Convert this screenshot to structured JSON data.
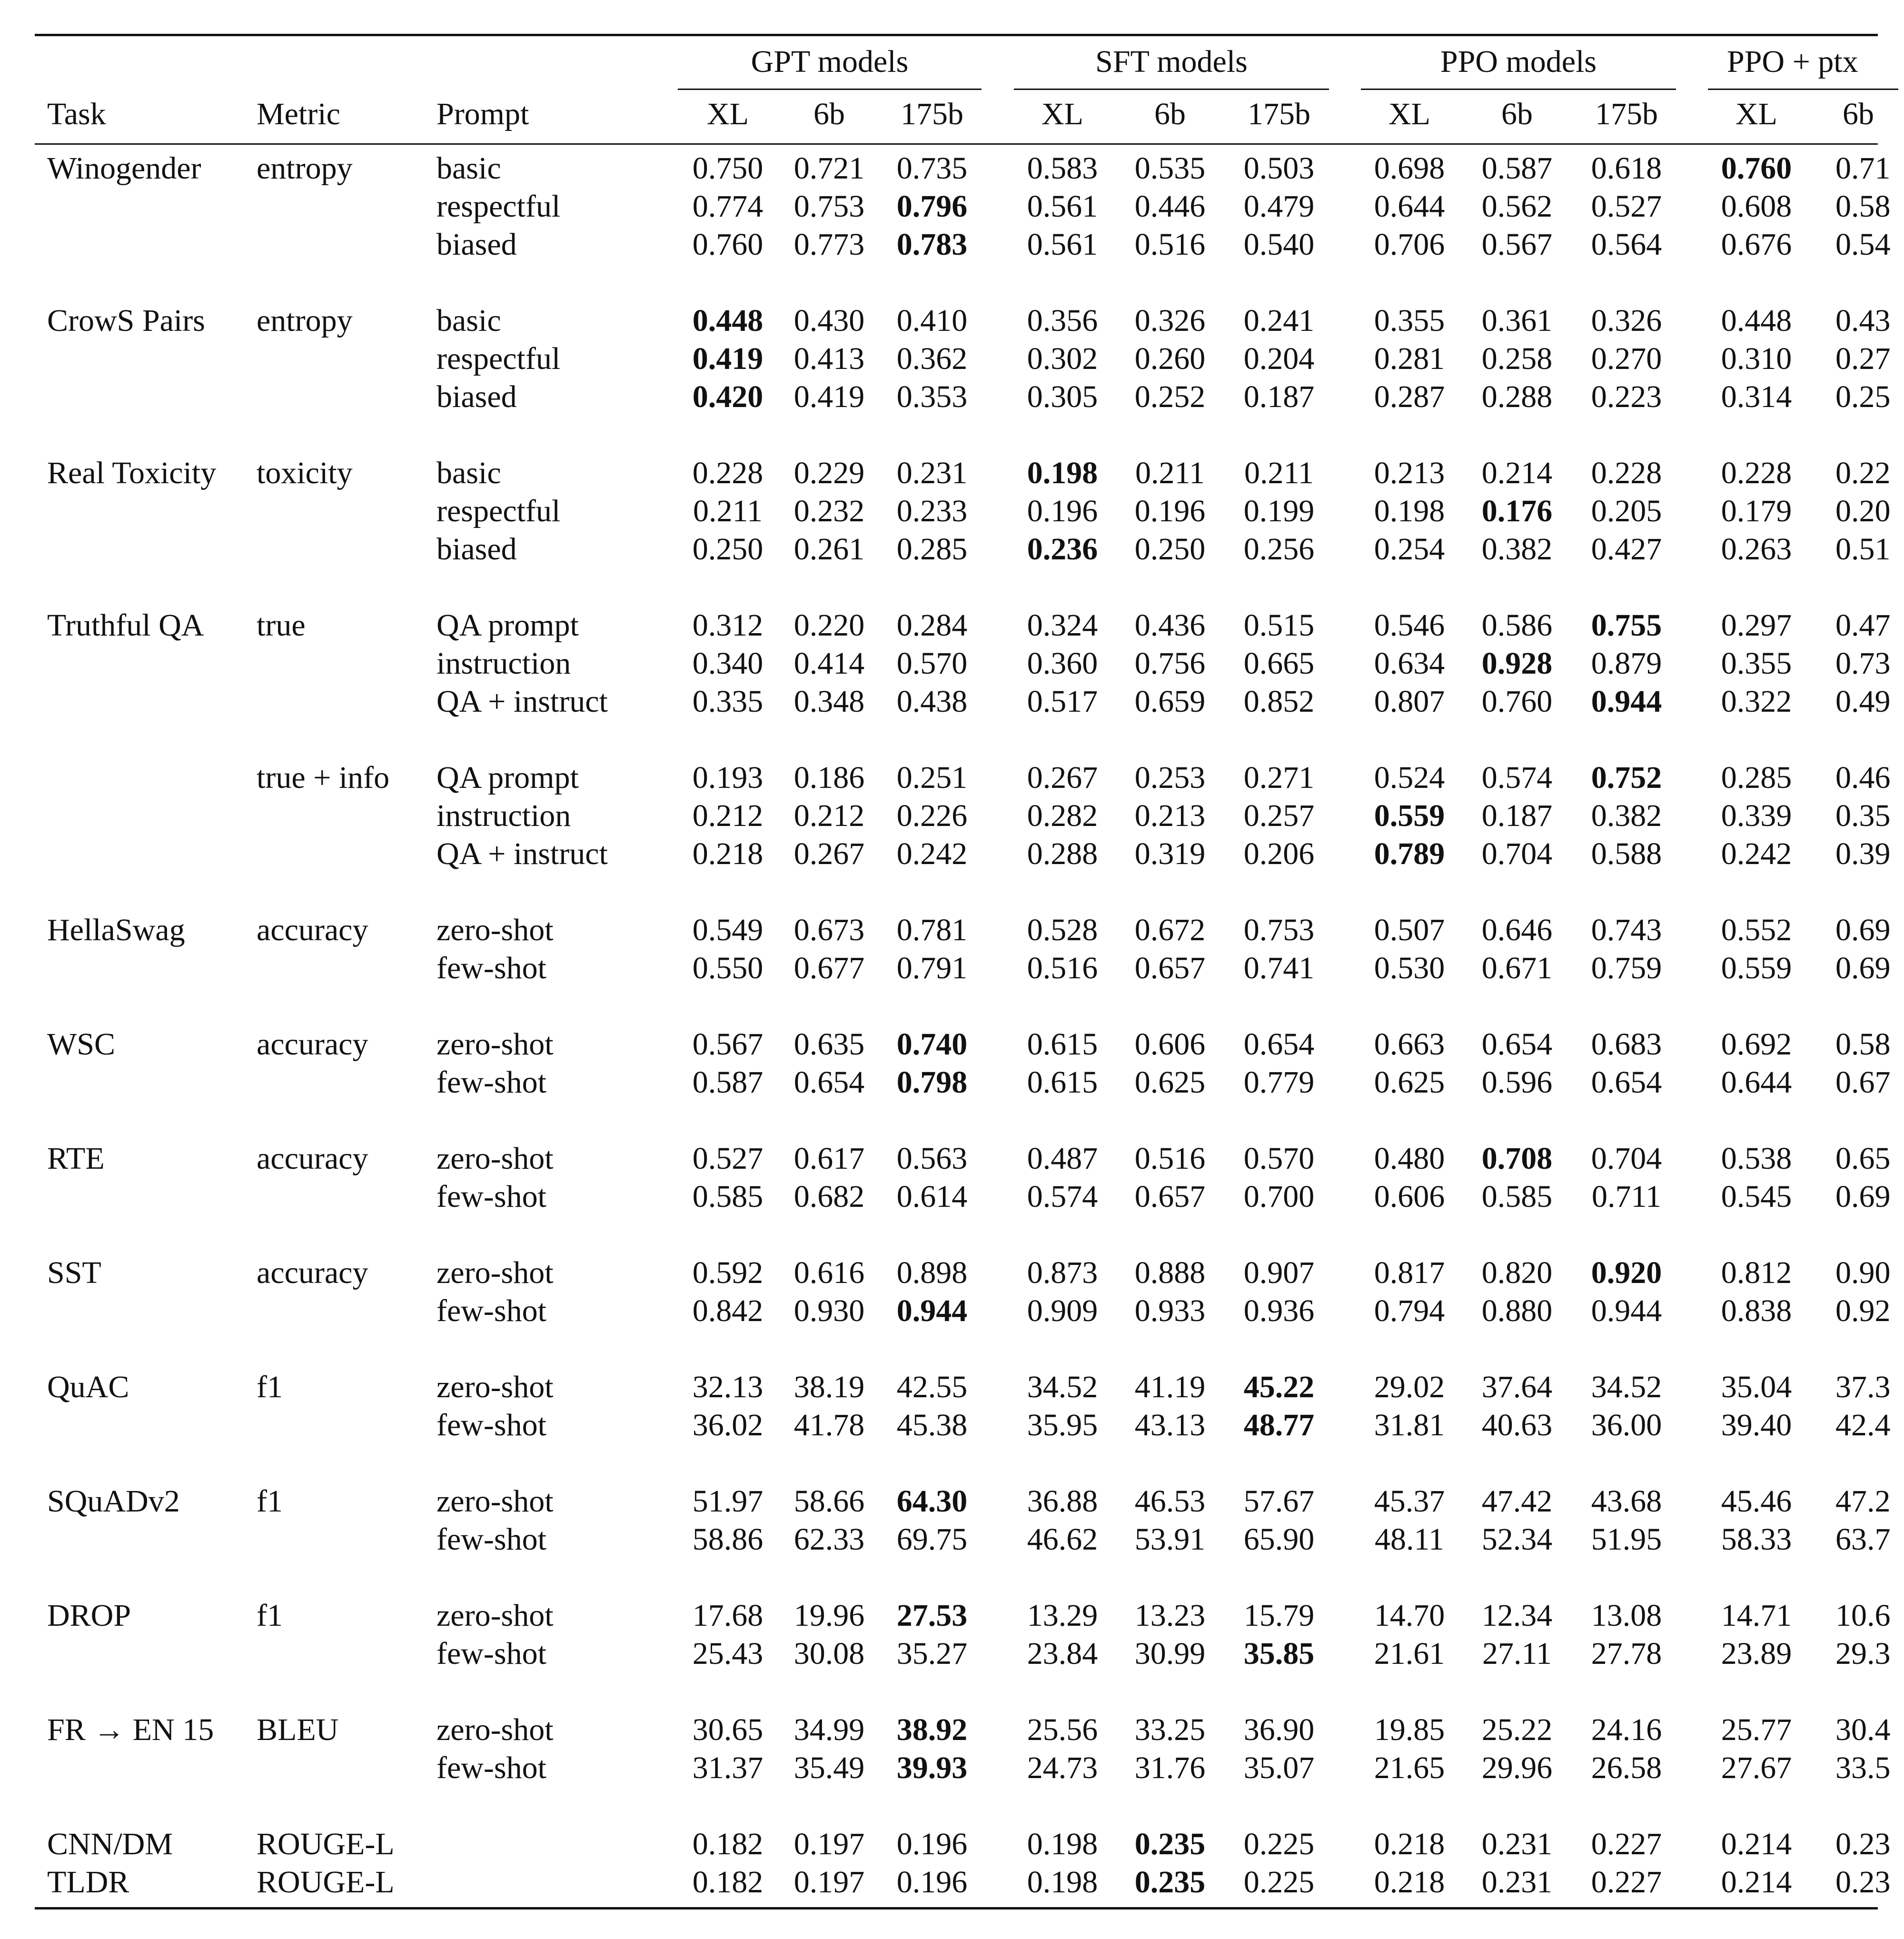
{
  "header": {
    "col_task": "Task",
    "col_metric": "Metric",
    "col_prompt": "Prompt",
    "groups": [
      "GPT models",
      "SFT models",
      "PPO models",
      "PPO + ptx"
    ],
    "sizes": [
      "XL",
      "6b",
      "175b",
      "XL",
      "6b",
      "175b",
      "XL",
      "6b",
      "175b",
      "XL",
      "6b"
    ]
  },
  "blocks": [
    {
      "rows": [
        {
          "task": "Winogender",
          "metric": "entropy",
          "prompt": "basic",
          "values": [
            "0.750",
            "0.721",
            "0.735",
            "0.583",
            "0.535",
            "0.503",
            "0.698",
            "0.587",
            "0.618",
            "0.760",
            "0.71"
          ],
          "bold": [
            9
          ]
        },
        {
          "task": "",
          "metric": "",
          "prompt": "respectful",
          "values": [
            "0.774",
            "0.753",
            "0.796",
            "0.561",
            "0.446",
            "0.479",
            "0.644",
            "0.562",
            "0.527",
            "0.608",
            "0.58"
          ],
          "bold": [
            2
          ]
        },
        {
          "task": "",
          "metric": "",
          "prompt": "biased",
          "values": [
            "0.760",
            "0.773",
            "0.783",
            "0.561",
            "0.516",
            "0.540",
            "0.706",
            "0.567",
            "0.564",
            "0.676",
            "0.54"
          ],
          "bold": [
            2
          ]
        }
      ]
    },
    {
      "rows": [
        {
          "task": "CrowS Pairs",
          "metric": "entropy",
          "prompt": "basic",
          "values": [
            "0.448",
            "0.430",
            "0.410",
            "0.356",
            "0.326",
            "0.241",
            "0.355",
            "0.361",
            "0.326",
            "0.448",
            "0.43"
          ],
          "bold": [
            0
          ]
        },
        {
          "task": "",
          "metric": "",
          "prompt": "respectful",
          "values": [
            "0.419",
            "0.413",
            "0.362",
            "0.302",
            "0.260",
            "0.204",
            "0.281",
            "0.258",
            "0.270",
            "0.310",
            "0.27"
          ],
          "bold": [
            0
          ]
        },
        {
          "task": "",
          "metric": "",
          "prompt": "biased",
          "values": [
            "0.420",
            "0.419",
            "0.353",
            "0.305",
            "0.252",
            "0.187",
            "0.287",
            "0.288",
            "0.223",
            "0.314",
            "0.25"
          ],
          "bold": [
            0
          ]
        }
      ]
    },
    {
      "rows": [
        {
          "task": "Real Toxicity",
          "metric": "toxicity",
          "prompt": "basic",
          "values": [
            "0.228",
            "0.229",
            "0.231",
            "0.198",
            "0.211",
            "0.211",
            "0.213",
            "0.214",
            "0.228",
            "0.228",
            "0.22"
          ],
          "bold": [
            3
          ]
        },
        {
          "task": "",
          "metric": "",
          "prompt": "respectful",
          "values": [
            "0.211",
            "0.232",
            "0.233",
            "0.196",
            "0.196",
            "0.199",
            "0.198",
            "0.176",
            "0.205",
            "0.179",
            "0.20"
          ],
          "bold": [
            7
          ]
        },
        {
          "task": "",
          "metric": "",
          "prompt": "biased",
          "values": [
            "0.250",
            "0.261",
            "0.285",
            "0.236",
            "0.250",
            "0.256",
            "0.254",
            "0.382",
            "0.427",
            "0.263",
            "0.51"
          ],
          "bold": [
            3
          ]
        }
      ]
    },
    {
      "rows": [
        {
          "task": "Truthful QA",
          "metric": "true",
          "prompt": "QA prompt",
          "values": [
            "0.312",
            "0.220",
            "0.284",
            "0.324",
            "0.436",
            "0.515",
            "0.546",
            "0.586",
            "0.755",
            "0.297",
            "0.47"
          ],
          "bold": [
            8
          ]
        },
        {
          "task": "",
          "metric": "",
          "prompt": "instruction",
          "values": [
            "0.340",
            "0.414",
            "0.570",
            "0.360",
            "0.756",
            "0.665",
            "0.634",
            "0.928",
            "0.879",
            "0.355",
            "0.73"
          ],
          "bold": [
            7
          ]
        },
        {
          "task": "",
          "metric": "",
          "prompt": "QA + instruct",
          "values": [
            "0.335",
            "0.348",
            "0.438",
            "0.517",
            "0.659",
            "0.852",
            "0.807",
            "0.760",
            "0.944",
            "0.322",
            "0.49"
          ],
          "bold": [
            8
          ]
        }
      ]
    },
    {
      "rows": [
        {
          "task": "",
          "metric": "true + info",
          "prompt": "QA prompt",
          "values": [
            "0.193",
            "0.186",
            "0.251",
            "0.267",
            "0.253",
            "0.271",
            "0.524",
            "0.574",
            "0.752",
            "0.285",
            "0.46"
          ],
          "bold": [
            8
          ]
        },
        {
          "task": "",
          "metric": "",
          "prompt": "instruction",
          "values": [
            "0.212",
            "0.212",
            "0.226",
            "0.282",
            "0.213",
            "0.257",
            "0.559",
            "0.187",
            "0.382",
            "0.339",
            "0.35"
          ],
          "bold": [
            6
          ]
        },
        {
          "task": "",
          "metric": "",
          "prompt": "QA + instruct",
          "values": [
            "0.218",
            "0.267",
            "0.242",
            "0.288",
            "0.319",
            "0.206",
            "0.789",
            "0.704",
            "0.588",
            "0.242",
            "0.39"
          ],
          "bold": [
            6
          ]
        }
      ]
    },
    {
      "rows": [
        {
          "task": "HellaSwag",
          "metric": "accuracy",
          "prompt": "zero-shot",
          "values": [
            "0.549",
            "0.673",
            "0.781",
            "0.528",
            "0.672",
            "0.753",
            "0.507",
            "0.646",
            "0.743",
            "0.552",
            "0.69"
          ],
          "bold": []
        },
        {
          "task": "",
          "metric": "",
          "prompt": "few-shot",
          "values": [
            "0.550",
            "0.677",
            "0.791",
            "0.516",
            "0.657",
            "0.741",
            "0.530",
            "0.671",
            "0.759",
            "0.559",
            "0.69"
          ],
          "bold": []
        }
      ]
    },
    {
      "rows": [
        {
          "task": "WSC",
          "metric": "accuracy",
          "prompt": "zero-shot",
          "values": [
            "0.567",
            "0.635",
            "0.740",
            "0.615",
            "0.606",
            "0.654",
            "0.663",
            "0.654",
            "0.683",
            "0.692",
            "0.58"
          ],
          "bold": [
            2
          ]
        },
        {
          "task": "",
          "metric": "",
          "prompt": "few-shot",
          "values": [
            "0.587",
            "0.654",
            "0.798",
            "0.615",
            "0.625",
            "0.779",
            "0.625",
            "0.596",
            "0.654",
            "0.644",
            "0.67"
          ],
          "bold": [
            2
          ]
        }
      ]
    },
    {
      "rows": [
        {
          "task": "RTE",
          "metric": "accuracy",
          "prompt": "zero-shot",
          "values": [
            "0.527",
            "0.617",
            "0.563",
            "0.487",
            "0.516",
            "0.570",
            "0.480",
            "0.708",
            "0.704",
            "0.538",
            "0.65"
          ],
          "bold": [
            7
          ]
        },
        {
          "task": "",
          "metric": "",
          "prompt": "few-shot",
          "values": [
            "0.585",
            "0.682",
            "0.614",
            "0.574",
            "0.657",
            "0.700",
            "0.606",
            "0.585",
            "0.711",
            "0.545",
            "0.69"
          ],
          "bold": []
        }
      ]
    },
    {
      "rows": [
        {
          "task": "SST",
          "metric": "accuracy",
          "prompt": "zero-shot",
          "values": [
            "0.592",
            "0.616",
            "0.898",
            "0.873",
            "0.888",
            "0.907",
            "0.817",
            "0.820",
            "0.920",
            "0.812",
            "0.90"
          ],
          "bold": [
            8
          ]
        },
        {
          "task": "",
          "metric": "",
          "prompt": "few-shot",
          "values": [
            "0.842",
            "0.930",
            "0.944",
            "0.909",
            "0.933",
            "0.936",
            "0.794",
            "0.880",
            "0.944",
            "0.838",
            "0.92"
          ],
          "bold": [
            2
          ]
        }
      ]
    },
    {
      "rows": [
        {
          "task": "QuAC",
          "metric": "f1",
          "prompt": "zero-shot",
          "values": [
            "32.13",
            "38.19",
            "42.55",
            "34.52",
            "41.19",
            "45.22",
            "29.02",
            "37.64",
            "34.52",
            "35.04",
            "37.3"
          ],
          "bold": [
            5
          ]
        },
        {
          "task": "",
          "metric": "",
          "prompt": "few-shot",
          "values": [
            "36.02",
            "41.78",
            "45.38",
            "35.95",
            "43.13",
            "48.77",
            "31.81",
            "40.63",
            "36.00",
            "39.40",
            "42.4"
          ],
          "bold": [
            5
          ]
        }
      ]
    },
    {
      "rows": [
        {
          "task": "SQuADv2",
          "metric": "f1",
          "prompt": "zero-shot",
          "values": [
            "51.97",
            "58.66",
            "64.30",
            "36.88",
            "46.53",
            "57.67",
            "45.37",
            "47.42",
            "43.68",
            "45.46",
            "47.2"
          ],
          "bold": [
            2
          ]
        },
        {
          "task": "",
          "metric": "",
          "prompt": "few-shot",
          "values": [
            "58.86",
            "62.33",
            "69.75",
            "46.62",
            "53.91",
            "65.90",
            "48.11",
            "52.34",
            "51.95",
            "58.33",
            "63.7"
          ],
          "bold": []
        }
      ]
    },
    {
      "rows": [
        {
          "task": "DROP",
          "metric": "f1",
          "prompt": "zero-shot",
          "values": [
            "17.68",
            "19.96",
            "27.53",
            "13.29",
            "13.23",
            "15.79",
            "14.70",
            "12.34",
            "13.08",
            "14.71",
            "10.6"
          ],
          "bold": [
            2
          ]
        },
        {
          "task": "",
          "metric": "",
          "prompt": "few-shot",
          "values": [
            "25.43",
            "30.08",
            "35.27",
            "23.84",
            "30.99",
            "35.85",
            "21.61",
            "27.11",
            "27.78",
            "23.89",
            "29.3"
          ],
          "bold": [
            5
          ]
        }
      ]
    },
    {
      "rows": [
        {
          "task": "FR → EN 15",
          "metric": "BLEU",
          "prompt": "zero-shot",
          "values": [
            "30.65",
            "34.99",
            "38.92",
            "25.56",
            "33.25",
            "36.90",
            "19.85",
            "25.22",
            "24.16",
            "25.77",
            "30.4"
          ],
          "bold": [
            2
          ]
        },
        {
          "task": "",
          "metric": "",
          "prompt": "few-shot",
          "values": [
            "31.37",
            "35.49",
            "39.93",
            "24.73",
            "31.76",
            "35.07",
            "21.65",
            "29.96",
            "26.58",
            "27.67",
            "33.5"
          ],
          "bold": [
            2
          ]
        }
      ]
    },
    {
      "rows": [
        {
          "task": "CNN/DM",
          "metric": "ROUGE-L",
          "prompt": "",
          "values": [
            "0.182",
            "0.197",
            "0.196",
            "0.198",
            "0.235",
            "0.225",
            "0.218",
            "0.231",
            "0.227",
            "0.214",
            "0.23"
          ],
          "bold": [
            4
          ]
        },
        {
          "task": "TLDR",
          "metric": "ROUGE-L",
          "prompt": "",
          "values": [
            "0.182",
            "0.197",
            "0.196",
            "0.198",
            "0.235",
            "0.225",
            "0.218",
            "0.231",
            "0.227",
            "0.214",
            "0.23"
          ],
          "bold": [
            4
          ]
        }
      ]
    }
  ]
}
